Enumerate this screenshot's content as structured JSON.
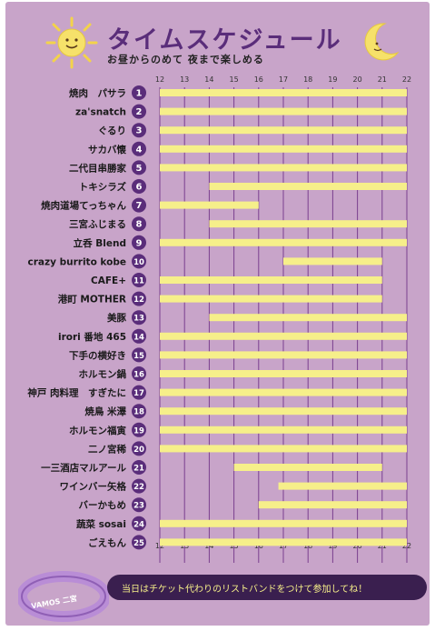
{
  "header": {
    "title": "タイムスケジュール",
    "subtitle": "お昼からのめて 夜まで楽しめる"
  },
  "footer": {
    "notice": "当日はチケット代わりのリストバンドをつけて参加してね！",
    "wristband_text": "VAMOS 二宮"
  },
  "colors": {
    "background": "#c8a4c9",
    "bar": "#f6ef8a",
    "number_badge": "#5a2d7a",
    "title": "#5a2d7a"
  },
  "chart_data": {
    "type": "gantt",
    "x_ticks": [
      12,
      13,
      14,
      15,
      16,
      17,
      18,
      19,
      20,
      21,
      22
    ],
    "xlim": [
      12,
      22
    ],
    "grid": true,
    "tasks": [
      {
        "num": "1",
        "name": "焼肉　パサラ",
        "start": 12,
        "end": 22
      },
      {
        "num": "2",
        "name": "za'snatch",
        "start": 12,
        "end": 22
      },
      {
        "num": "3",
        "name": "ぐるり",
        "start": 12,
        "end": 22
      },
      {
        "num": "4",
        "name": "サカバ懐",
        "start": 12,
        "end": 22
      },
      {
        "num": "5",
        "name": "二代目串勝家",
        "start": 12,
        "end": 22
      },
      {
        "num": "6",
        "name": "トキシラズ",
        "start": 14,
        "end": 22
      },
      {
        "num": "7",
        "name": "焼肉道場てっちゃん",
        "start": 12,
        "end": 16
      },
      {
        "num": "8",
        "name": "三宮ふじまる",
        "start": 14,
        "end": 22
      },
      {
        "num": "9",
        "name": "立呑 Blend",
        "start": 12,
        "end": 22
      },
      {
        "num": "10",
        "name": "crazy burrito kobe",
        "start": 17,
        "end": 21
      },
      {
        "num": "11",
        "name": "CAFE+",
        "start": 12,
        "end": 21
      },
      {
        "num": "12",
        "name": "港町 MOTHER",
        "start": 12,
        "end": 21
      },
      {
        "num": "13",
        "name": "美豚",
        "start": 14,
        "end": 22
      },
      {
        "num": "14",
        "name": "irori 番地 465",
        "start": 12,
        "end": 22
      },
      {
        "num": "15",
        "name": "下手の横好き",
        "start": 12,
        "end": 22
      },
      {
        "num": "16",
        "name": "ホルモン鍋",
        "start": 12,
        "end": 22
      },
      {
        "num": "17",
        "name": "神戸 肉料理　すぎたに",
        "start": 12,
        "end": 22
      },
      {
        "num": "18",
        "name": "焼鳥 米澤",
        "start": 12,
        "end": 22
      },
      {
        "num": "19",
        "name": "ホルモン福寅",
        "start": 12,
        "end": 22
      },
      {
        "num": "20",
        "name": "二ノ宮稀",
        "start": 12,
        "end": 22
      },
      {
        "num": "21",
        "name": "一三酒店マルアール",
        "start": 15,
        "end": 21
      },
      {
        "num": "22",
        "name": "ワインバー矢格",
        "start": 16.8,
        "end": 22
      },
      {
        "num": "23",
        "name": "バーかもめ",
        "start": 16,
        "end": 22
      },
      {
        "num": "24",
        "name": "蔬菜 sosai",
        "start": 12,
        "end": 22
      },
      {
        "num": "25",
        "name": "ごえもん",
        "start": 12,
        "end": 22
      }
    ]
  }
}
